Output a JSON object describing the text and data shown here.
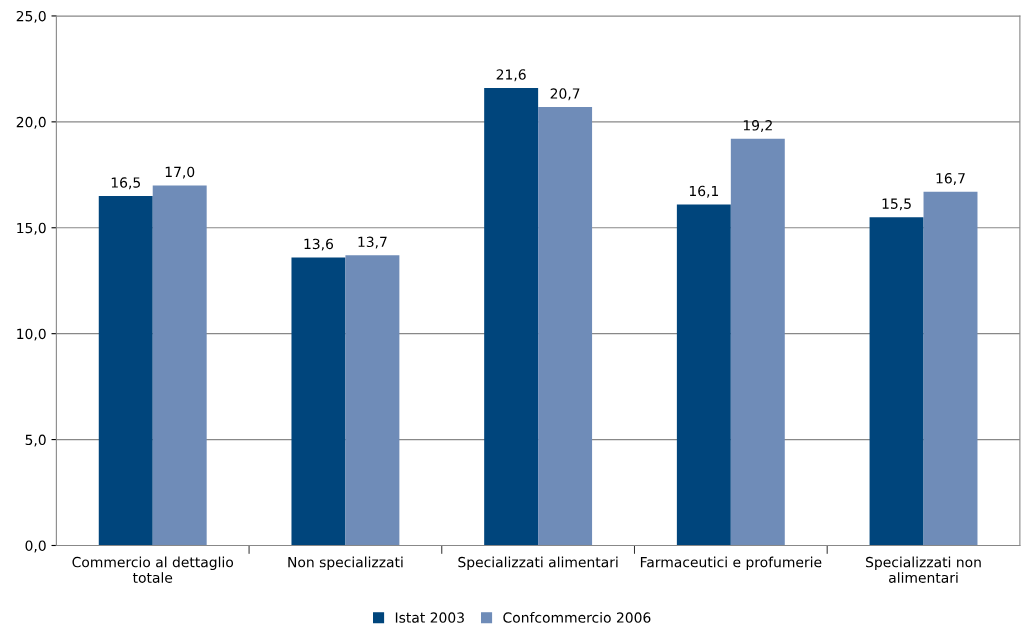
{
  "chart_data": {
    "type": "bar",
    "categories": [
      "Commercio al dettaglio\ntotale",
      "Non specializzati",
      "Specializzati alimentari",
      "Farmaceutici e profumerie",
      "Specializzati non\nalimentari"
    ],
    "series": [
      {
        "name": "Istat 2003",
        "color": "#00457c",
        "values": [
          16.5,
          13.6,
          21.6,
          16.1,
          15.5
        ],
        "value_labels": [
          "16,5",
          "13,6",
          "21,6",
          "16,1",
          "15,5"
        ]
      },
      {
        "name": "Confcommercio 2006",
        "color": "#6f8cb8",
        "values": [
          17.0,
          13.7,
          20.7,
          19.2,
          16.7
        ],
        "value_labels": [
          "17,0",
          "13,7",
          "20,7",
          "19,2",
          "16,7"
        ]
      }
    ],
    "ylim": [
      0,
      25
    ],
    "yticks": [
      {
        "value": 0,
        "label": "0,0"
      },
      {
        "value": 5,
        "label": "5,0"
      },
      {
        "value": 10,
        "label": "10,0"
      },
      {
        "value": 15,
        "label": "15,0"
      },
      {
        "value": 20,
        "label": "20,0"
      },
      {
        "value": 25,
        "label": "25,0"
      }
    ],
    "grid": "y",
    "legend": "bottom"
  }
}
